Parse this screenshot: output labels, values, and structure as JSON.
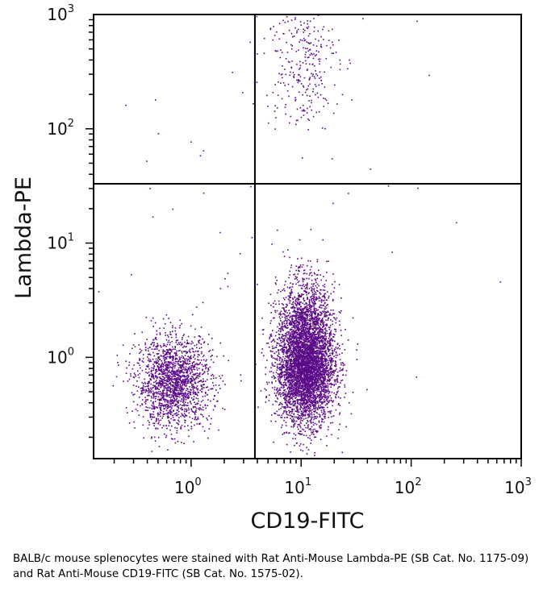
{
  "chart_data": {
    "type": "scatter",
    "plot_style": "flow cytometry dot plot",
    "xlabel": "CD19-FITC",
    "ylabel": "Lambda-PE",
    "x_scale": "log",
    "y_scale": "log",
    "xlim": [
      0.13,
      1000
    ],
    "ylim": [
      0.13,
      1000
    ],
    "x_ticks": [
      {
        "base": "10",
        "exp": "0",
        "value": 1
      },
      {
        "base": "10",
        "exp": "1",
        "value": 10
      },
      {
        "base": "10",
        "exp": "2",
        "value": 100
      },
      {
        "base": "10",
        "exp": "3",
        "value": 1000
      }
    ],
    "y_ticks": [
      {
        "base": "10",
        "exp": "0",
        "value": 1
      },
      {
        "base": "10",
        "exp": "1",
        "value": 10
      },
      {
        "base": "10",
        "exp": "2",
        "value": 100
      },
      {
        "base": "10",
        "exp": "3",
        "value": 1000
      }
    ],
    "quadrant_gates": {
      "x": 3.8,
      "y": 33
    },
    "point_color": "#5b0a87",
    "series": [
      {
        "name": "CD19- Lambda- (lower left)",
        "approx_events": 1800,
        "center": {
          "x": 0.7,
          "y": 0.6
        }
      },
      {
        "name": "CD19+ Lambda- (lower right)",
        "approx_events": 5200,
        "center": {
          "x": 11,
          "y": 0.9
        }
      },
      {
        "name": "CD19+ Lambda+ (upper right)",
        "approx_events": 300,
        "center": {
          "x": 10,
          "y": 400
        }
      },
      {
        "name": "sparse background events",
        "approx_events": 60,
        "center": {
          "x": 3,
          "y": 10
        }
      }
    ]
  },
  "caption": "BALB/c mouse splenocytes were stained with Rat Anti-Mouse Lambda-PE (SB Cat. No. 1175-09) and Rat Anti-Mouse CD19-FITC (SB Cat. No. 1575-02)."
}
